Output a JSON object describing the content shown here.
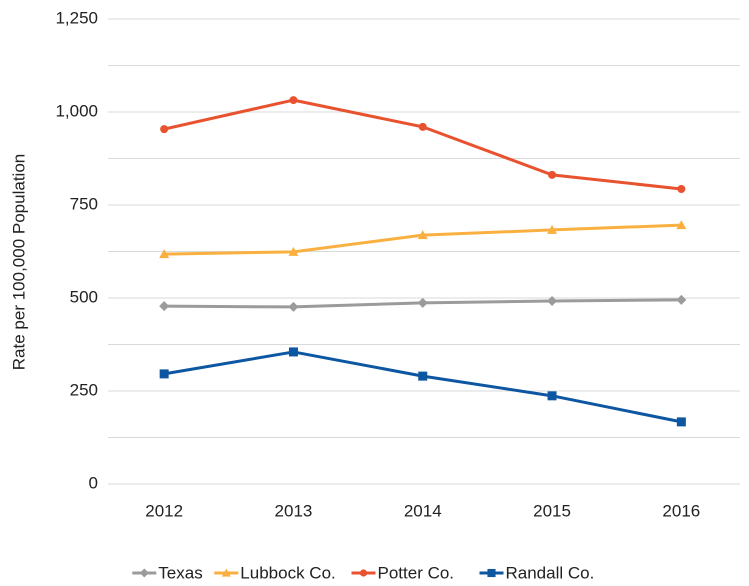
{
  "chart_data": {
    "type": "line",
    "y_axis_label": "Rate per 100,000 Population",
    "categories": [
      "2012",
      "2013",
      "2014",
      "2015",
      "2016"
    ],
    "series": [
      {
        "name": "Texas",
        "color": "#9b9b9b",
        "marker": "diamond",
        "values": [
          478,
          476,
          487,
          492,
          495
        ]
      },
      {
        "name": "Lubbock Co.",
        "color": "#f9b040",
        "marker": "triangle",
        "values": [
          618,
          624,
          669,
          683,
          696
        ]
      },
      {
        "name": "Potter Co.",
        "color": "#e8522f",
        "marker": "circle",
        "values": [
          954,
          1032,
          960,
          831,
          793
        ]
      },
      {
        "name": "Randall Co.",
        "color": "#0d56a1",
        "marker": "square",
        "values": [
          296,
          355,
          290,
          237,
          167
        ]
      }
    ],
    "ylim": [
      0,
      1250
    ],
    "yticks": [
      0,
      250,
      500,
      750,
      {
        "value": 1000,
        "label": "1,000"
      },
      {
        "value": 1250,
        "label": "1,250"
      }
    ],
    "minor_yticks": [
      125,
      375,
      625,
      875,
      1125
    ],
    "grid": true,
    "legend": "bottom"
  }
}
